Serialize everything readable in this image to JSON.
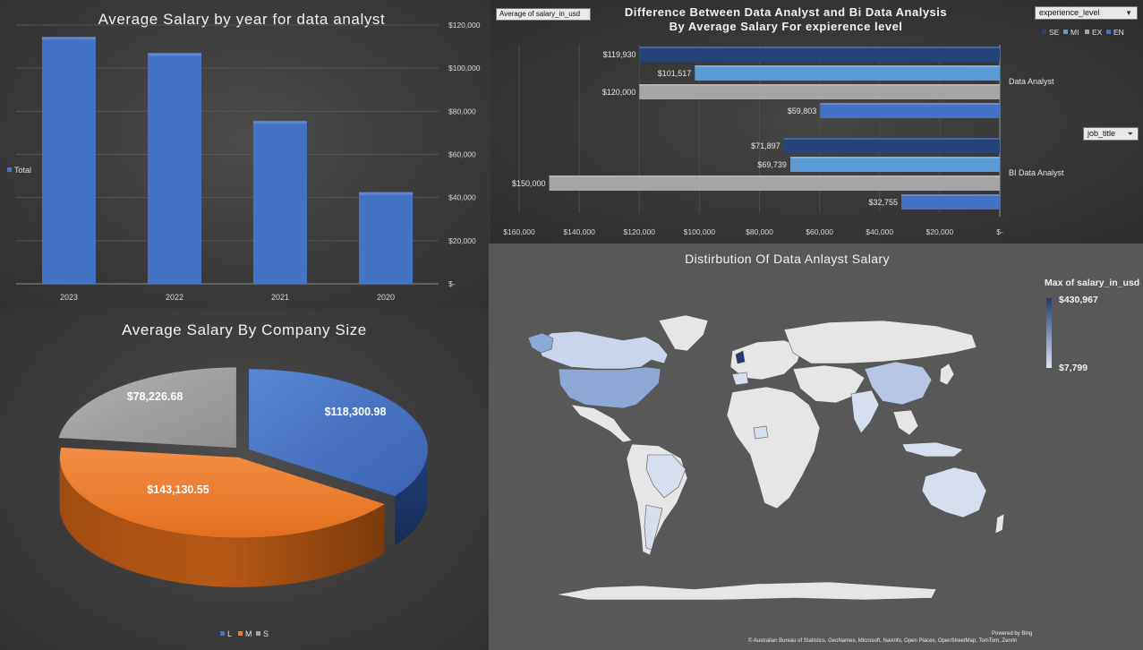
{
  "bar_chart": {
    "title": "Average Salary by year for data analyst",
    "legend_label": "Total",
    "colors": {
      "bar": "#4472c4",
      "bar_light": "#5d86d6"
    }
  },
  "hbar_chart": {
    "title_line1": "Difference Between Data Analyst and Bi Data Analysis",
    "title_line2": "By Average Salary For expierence level",
    "field_button": "Average of salary_in_usd",
    "filter_experience": "experience_level",
    "filter_job": "job_title",
    "colors": {
      "SE": "#264478",
      "MI": "#5b9bd5",
      "EX": "#a5a5a5",
      "EN": "#4472c4"
    }
  },
  "pie_chart": {
    "title": "Average Salary By Company Size",
    "colors": {
      "L": "#4472c4",
      "M": "#ed7d31",
      "S": "#a5a5a5"
    }
  },
  "map": {
    "title": "Distirbution Of Data Anlayst Salary",
    "legend_title": "Max of salary_in_usd",
    "legend_max": "$430,967",
    "legend_min": "$7,799",
    "powered_by": "Powered by Bing",
    "attribution": "© Australian Bureau of Statistics, GeoNames, Microsoft, Navinfo, Open Places, OpenStreetMap, TomTom, Zenrin",
    "colors": {
      "land": "#e6e6e6",
      "high": "#203a72",
      "mid": "#8ea9d8",
      "low": "#d5dff0",
      "ocean": "#585858"
    }
  },
  "chart_data": [
    {
      "type": "bar",
      "title": "Average Salary by year for data analyst",
      "categories": [
        "2023",
        "2022",
        "2021",
        "2020"
      ],
      "series": [
        {
          "name": "Total",
          "values": [
            114500,
            107000,
            75500,
            42500
          ]
        }
      ],
      "ylim": [
        0,
        120000
      ],
      "yticks": [
        "$-",
        "$20,000",
        "$40,000",
        "$60,000",
        "$80,000",
        "$100,000",
        "$120,000"
      ],
      "grid": true,
      "legend": "left"
    },
    {
      "type": "bar",
      "orientation": "horizontal",
      "title": "Difference Between Data Analyst and Bi Data Analysis By Average Salary For expierence level",
      "categories": [
        "Data Analyst",
        "BI Data Analyst"
      ],
      "series": [
        {
          "name": "SE",
          "values": [
            119930,
            71897
          ],
          "labels": [
            "$119,930",
            "$71,897"
          ]
        },
        {
          "name": "MI",
          "values": [
            101517,
            69739
          ],
          "labels": [
            "$101,517",
            "$69,739"
          ]
        },
        {
          "name": "EX",
          "values": [
            120000,
            150000
          ],
          "labels": [
            "$120,000",
            "$150,000"
          ]
        },
        {
          "name": "EN",
          "values": [
            59803,
            32755
          ],
          "labels": [
            "$59,803",
            "$32,755"
          ]
        }
      ],
      "xlim": [
        0,
        160000
      ],
      "xticks": [
        "$160,000",
        "$140,000",
        "$120,000",
        "$100,000",
        "$80,000",
        "$60,000",
        "$40,000",
        "$20,000",
        "$-"
      ],
      "reversed_axis": true,
      "legend": "top-right"
    },
    {
      "type": "pie",
      "title": "Average Salary By Company Size",
      "categories": [
        "L",
        "M",
        "S"
      ],
      "values": [
        118300.98,
        143130.55,
        78226.68
      ],
      "labels": [
        "$118,300.98",
        "$143,130.55",
        "$78,226.68"
      ],
      "legend": "bottom"
    }
  ]
}
